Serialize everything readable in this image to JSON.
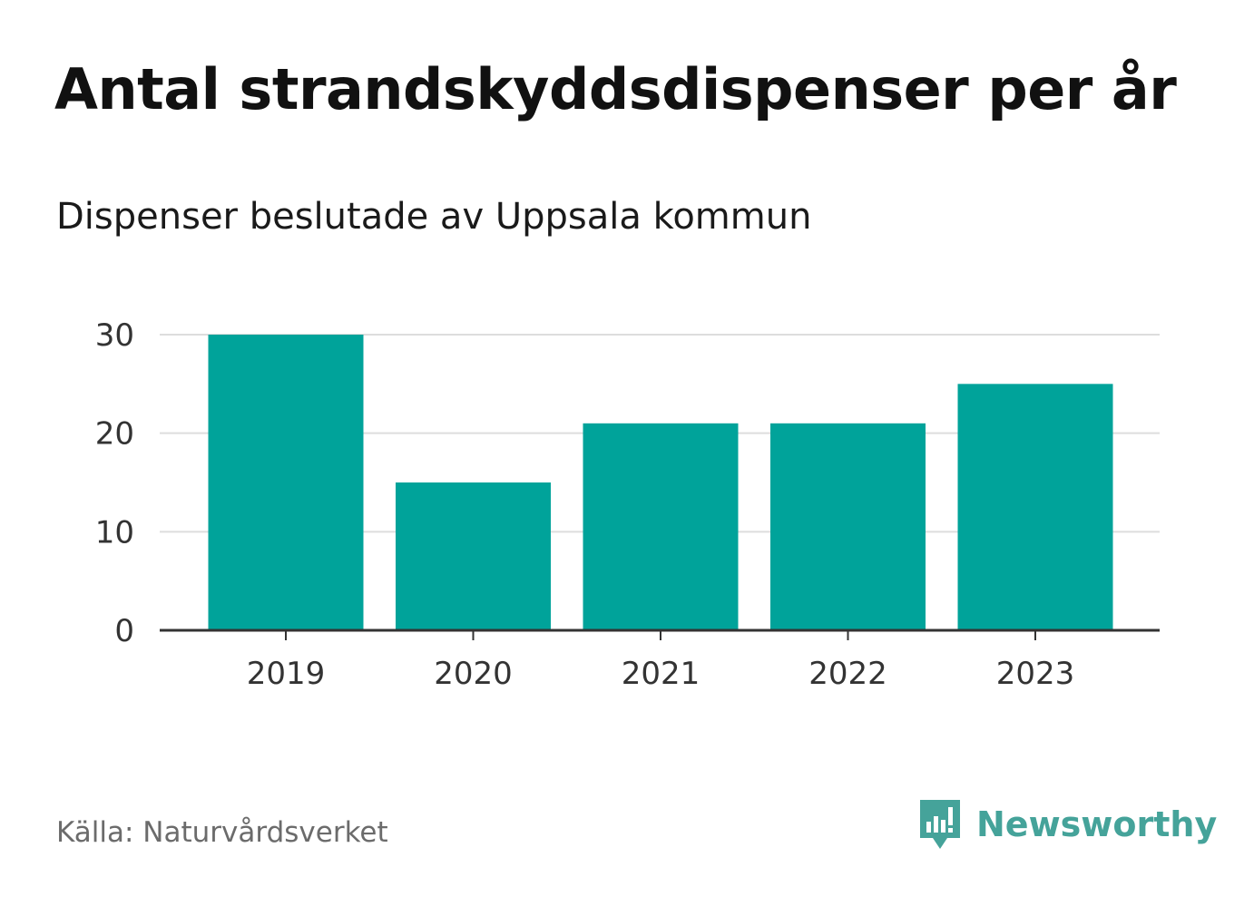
{
  "header": {
    "title": "Antal strandskyddsdispenser per år",
    "subtitle": "Dispenser beslutade av Uppsala kommun"
  },
  "footer": {
    "source": "Källa: Naturvårdsverket",
    "brand": "Newsworthy",
    "brand_color": "#45a39a"
  },
  "colors": {
    "bar": "#00a39a",
    "grid": "#dddddd",
    "axis": "#333333"
  },
  "chart_data": {
    "type": "bar",
    "title": "Antal strandskyddsdispenser per år",
    "subtitle": "Dispenser beslutade av Uppsala kommun",
    "xlabel": "",
    "ylabel": "",
    "categories": [
      "2019",
      "2020",
      "2021",
      "2022",
      "2023"
    ],
    "values": [
      30,
      15,
      21,
      21,
      25
    ],
    "ylim": [
      0,
      30
    ],
    "yticks": [
      0,
      10,
      20,
      30
    ],
    "grid": true,
    "legend": "none"
  }
}
